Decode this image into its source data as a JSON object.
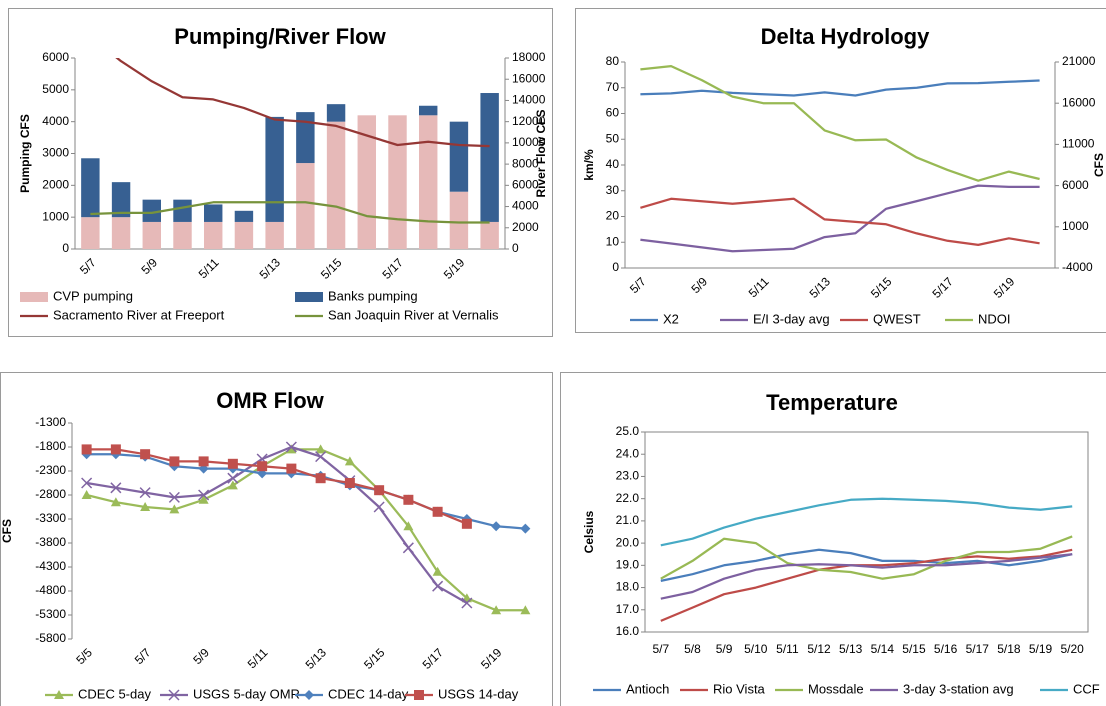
{
  "chart_data": [
    {
      "type": "bar",
      "title": "Pumping/River Flow",
      "ylabel": "Pumping CFS",
      "y2label": "River Flow CFS",
      "categories": [
        "5/7",
        null,
        "5/9",
        null,
        "5/11",
        null,
        "5/13",
        null,
        "5/15",
        null,
        "5/17",
        null,
        "5/19",
        null
      ],
      "ylim": [
        0,
        6000
      ],
      "yticks": [
        0,
        1000,
        2000,
        3000,
        4000,
        5000,
        6000
      ],
      "y2lim": [
        0,
        18000
      ],
      "y2ticks": [
        0,
        2000,
        4000,
        6000,
        8000,
        10000,
        12000,
        14000,
        16000,
        18000
      ],
      "grid": false,
      "stacked": true,
      "series": [
        {
          "name": "CVP pumping",
          "type": "bar",
          "color": "#e6b9b8",
          "values": [
            1000,
            1000,
            850,
            850,
            850,
            850,
            850,
            2700,
            4000,
            4200,
            4200,
            4200,
            1800,
            850
          ]
        },
        {
          "name": "Banks pumping",
          "type": "bar",
          "color": "#376092",
          "values": [
            1850,
            1100,
            700,
            700,
            550,
            350,
            3300,
            1600,
            550,
            0,
            0,
            300,
            2200,
            4050
          ]
        },
        {
          "name": "Sacramento River at Freeport",
          "type": "line",
          "axis": "y2",
          "color": "#953735",
          "values": [
            20000,
            17700,
            15800,
            14300,
            14100,
            13300,
            12200,
            12000,
            11600,
            10700,
            9800,
            10100,
            9800,
            9700
          ]
        },
        {
          "name": "San Joaquin River at Vernalis",
          "type": "line",
          "axis": "y2",
          "color": "#77933c",
          "values": [
            3300,
            3400,
            3400,
            3900,
            4400,
            4400,
            4400,
            4400,
            4000,
            3100,
            2800,
            2600,
            2500,
            2500
          ]
        }
      ]
    },
    {
      "type": "line",
      "title": "Delta Hydrology",
      "ylabel": "km/%",
      "y2label": "CFS",
      "categories": [
        "5/7",
        null,
        "5/9",
        null,
        "5/11",
        null,
        "5/13",
        null,
        "5/15",
        null,
        "5/17",
        null,
        "5/19",
        null
      ],
      "ylim": [
        0,
        80
      ],
      "yticks": [
        0,
        10,
        20,
        30,
        40,
        50,
        60,
        70,
        80
      ],
      "y2lim": [
        -4000,
        21000
      ],
      "y2ticks": [
        -4000,
        1000,
        6000,
        11000,
        16000,
        21000
      ],
      "grid": false,
      "series": [
        {
          "name": "X2",
          "color": "#4a7ebb",
          "values": [
            67.5,
            67.8,
            68.8,
            68,
            67.5,
            67,
            68.2,
            67,
            69.3,
            70,
            71.7,
            71.8,
            72.3,
            72.8
          ]
        },
        {
          "name": "E/I 3-day avg",
          "color": "#7d60a0",
          "values": [
            11,
            9.5,
            8,
            6.5,
            7,
            7.5,
            12,
            13.5,
            23,
            26,
            29,
            32,
            31.5,
            31.5
          ]
        },
        {
          "name": "QWEST",
          "axis": "y2",
          "color": "#be4b48",
          "values": [
            3300,
            4400,
            4100,
            3800,
            4100,
            4400,
            1900,
            1600,
            1300,
            200,
            -700,
            -1200,
            -400,
            -1000
          ]
        },
        {
          "name": "NDOI",
          "axis": "y2",
          "color": "#98b954",
          "values": [
            20100,
            20500,
            18800,
            16800,
            16000,
            16000,
            12700,
            11500,
            11600,
            9400,
            7900,
            6600,
            7700,
            6800
          ]
        }
      ]
    },
    {
      "type": "line",
      "title": "OMR Flow",
      "ylabel": "CFS",
      "categories": [
        "5/5",
        null,
        "5/7",
        null,
        "5/9",
        null,
        "5/11",
        null,
        "5/13",
        null,
        "5/15",
        null,
        "5/17",
        null,
        "5/19",
        null
      ],
      "ylim": [
        -5800,
        -1300
      ],
      "yticks": [
        -5800,
        -5300,
        -4800,
        -4300,
        -3800,
        -3300,
        -2800,
        -2300,
        -1800,
        -1300
      ],
      "grid": false,
      "series": [
        {
          "name": "CDEC 5-day",
          "color": "#9bbb59",
          "marker": "triangle",
          "values": [
            -2800,
            -2950,
            -3050,
            -3100,
            -2900,
            -2600,
            -2200,
            -1850,
            -1850,
            -2100,
            -2700,
            -3450,
            -4400,
            -4950,
            -5200,
            -5200
          ]
        },
        {
          "name": "USGS 5-day OMR",
          "color": "#8064a2",
          "marker": "x",
          "values": [
            -2550,
            -2650,
            -2750,
            -2850,
            -2800,
            -2450,
            -2050,
            -1800,
            -2000,
            -2500,
            -3050,
            -3900,
            -4700,
            -5050,
            null,
            null
          ]
        },
        {
          "name": "CDEC 14-day",
          "color": "#4f81bd",
          "marker": "diamond",
          "values": [
            -1950,
            -1950,
            -2000,
            -2200,
            -2250,
            -2250,
            -2350,
            -2350,
            -2400,
            -2600,
            -2700,
            -2900,
            -3150,
            -3300,
            -3450,
            -3500
          ]
        },
        {
          "name": "USGS 14-day",
          "color": "#c0504d",
          "marker": "square",
          "values": [
            -1850,
            -1850,
            -1950,
            -2100,
            -2100,
            -2150,
            -2200,
            -2250,
            -2450,
            -2550,
            -2700,
            -2900,
            -3150,
            -3400,
            null,
            null
          ]
        }
      ]
    },
    {
      "type": "line",
      "title": "Temperature",
      "ylabel": "Celsius",
      "categories": [
        "5/7",
        "5/8",
        "5/9",
        "5/10",
        "5/11",
        "5/12",
        "5/13",
        "5/14",
        "5/15",
        "5/16",
        "5/17",
        "5/18",
        "5/19",
        "5/20"
      ],
      "ylim": [
        16,
        25
      ],
      "yticks": [
        {
          "value": 16,
          "label": "16.0"
        },
        {
          "value": 17,
          "label": "17.0"
        },
        {
          "value": 18,
          "label": "18.0"
        },
        {
          "value": 19,
          "label": "19.0"
        },
        {
          "value": 20,
          "label": "20.0"
        },
        {
          "value": 21,
          "label": "21.0"
        },
        {
          "value": 22,
          "label": "22.0"
        },
        {
          "value": 23,
          "label": "23.0"
        },
        {
          "value": 24,
          "label": "24.0"
        },
        {
          "value": 25,
          "label": "25.0"
        }
      ],
      "grid": false,
      "series": [
        {
          "name": "Antioch",
          "color": "#4a7ebb",
          "values": [
            18.3,
            18.6,
            19.0,
            19.2,
            19.5,
            19.7,
            19.55,
            19.2,
            19.2,
            19.1,
            19.2,
            19.0,
            19.2,
            19.5
          ]
        },
        {
          "name": "Rio Vista",
          "color": "#be4b48",
          "values": [
            16.5,
            17.1,
            17.7,
            18.0,
            18.4,
            18.8,
            19.0,
            19.0,
            19.1,
            19.3,
            19.4,
            19.3,
            19.4,
            19.7
          ]
        },
        {
          "name": "Mossdale",
          "color": "#98b954",
          "values": [
            18.4,
            19.2,
            20.2,
            20.0,
            19.1,
            18.8,
            18.7,
            18.4,
            18.6,
            19.2,
            19.6,
            19.6,
            19.75,
            20.3
          ]
        },
        {
          "name": "3-day 3-station avg",
          "color": "#7d60a0",
          "values": [
            17.5,
            17.8,
            18.4,
            18.8,
            19.0,
            19.05,
            19.0,
            18.9,
            19.0,
            19.0,
            19.1,
            19.2,
            19.35,
            19.5
          ]
        },
        {
          "name": "CCF",
          "color": "#46aac5",
          "values": [
            19.9,
            20.2,
            20.7,
            21.1,
            21.4,
            21.7,
            21.95,
            22.0,
            21.95,
            21.9,
            21.8,
            21.6,
            21.5,
            21.65
          ]
        }
      ]
    }
  ]
}
